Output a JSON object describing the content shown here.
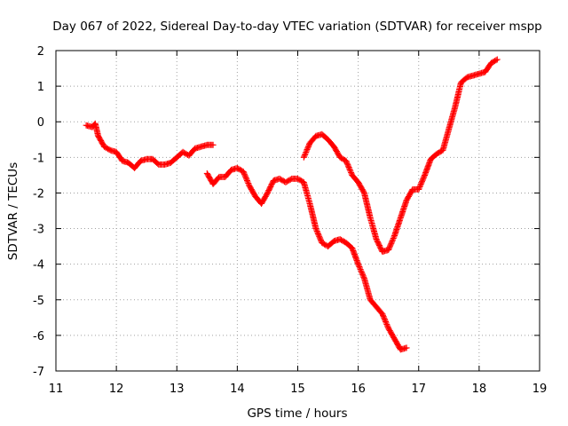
{
  "chart_data": {
    "type": "scatter",
    "title": "Day 067 of 2022, Sidereal Day-to-day VTEC variation (SDTVAR) for receiver mspp",
    "xlabel": "GPS time / hours",
    "ylabel": "SDTVAR / TECUs",
    "xlim": [
      11,
      19
    ],
    "ylim": [
      -7,
      2
    ],
    "x_ticks": [
      11,
      12,
      13,
      14,
      15,
      16,
      17,
      18,
      19
    ],
    "y_ticks": [
      2,
      1,
      0,
      -1,
      -2,
      -3,
      -4,
      -5,
      -6,
      -7
    ],
    "grid": true,
    "marker": "+",
    "colors": {
      "series": "#ff0000",
      "grid": "#a0a0a0",
      "frame": "#000000"
    },
    "series": [
      {
        "name": "segment-1",
        "x": [
          11.5,
          11.6,
          11.65,
          11.7,
          11.8,
          11.9,
          12.0,
          12.1,
          12.2,
          12.3,
          12.4,
          12.5,
          12.6,
          12.7,
          12.8,
          12.9,
          13.0,
          13.1,
          13.2,
          13.3,
          13.4,
          13.5,
          13.6
        ],
        "y": [
          -0.1,
          -0.15,
          -0.05,
          -0.4,
          -0.7,
          -0.8,
          -0.85,
          -1.1,
          -1.15,
          -1.3,
          -1.1,
          -1.05,
          -1.05,
          -1.2,
          -1.2,
          -1.15,
          -1.0,
          -0.85,
          -0.95,
          -0.75,
          -0.7,
          -0.65,
          -0.65
        ]
      },
      {
        "name": "segment-2",
        "x": [
          13.5,
          13.6,
          13.7,
          13.8,
          13.9,
          14.0,
          14.1,
          14.2,
          14.3,
          14.4,
          14.5,
          14.6,
          14.7,
          14.8,
          14.9,
          15.0,
          15.1,
          15.2,
          15.3,
          15.4,
          15.5,
          15.6,
          15.7,
          15.8,
          15.9,
          16.0,
          16.1,
          16.2,
          16.3,
          16.4,
          16.5,
          16.6,
          16.7,
          16.8
        ],
        "y": [
          -1.45,
          -1.75,
          -1.55,
          -1.55,
          -1.35,
          -1.3,
          -1.4,
          -1.8,
          -2.1,
          -2.3,
          -2.0,
          -1.65,
          -1.6,
          -1.7,
          -1.6,
          -1.6,
          -1.7,
          -2.3,
          -3.0,
          -3.4,
          -3.5,
          -3.35,
          -3.3,
          -3.4,
          -3.55,
          -4.0,
          -4.4,
          -5.0,
          -5.2,
          -5.4,
          -5.8,
          -6.1,
          -6.4,
          -6.35
        ]
      },
      {
        "name": "segment-3",
        "x": [
          15.1,
          15.2,
          15.3,
          15.4,
          15.5,
          15.6,
          15.7,
          15.8,
          15.9,
          16.0,
          16.1,
          16.2,
          16.3,
          16.4,
          16.5,
          16.6,
          16.7,
          16.8,
          16.9,
          17.0,
          17.1,
          17.2,
          17.3,
          17.4,
          17.5,
          17.6,
          17.7,
          17.8,
          17.9,
          18.0,
          18.1,
          18.2,
          18.3
        ],
        "y": [
          -1.0,
          -0.6,
          -0.4,
          -0.35,
          -0.5,
          -0.7,
          -1.0,
          -1.1,
          -1.5,
          -1.7,
          -2.0,
          -2.7,
          -3.3,
          -3.65,
          -3.6,
          -3.2,
          -2.7,
          -2.2,
          -1.9,
          -1.9,
          -1.5,
          -1.05,
          -0.9,
          -0.8,
          -0.2,
          0.4,
          1.1,
          1.25,
          1.3,
          1.35,
          1.4,
          1.65,
          1.75
        ]
      }
    ]
  }
}
